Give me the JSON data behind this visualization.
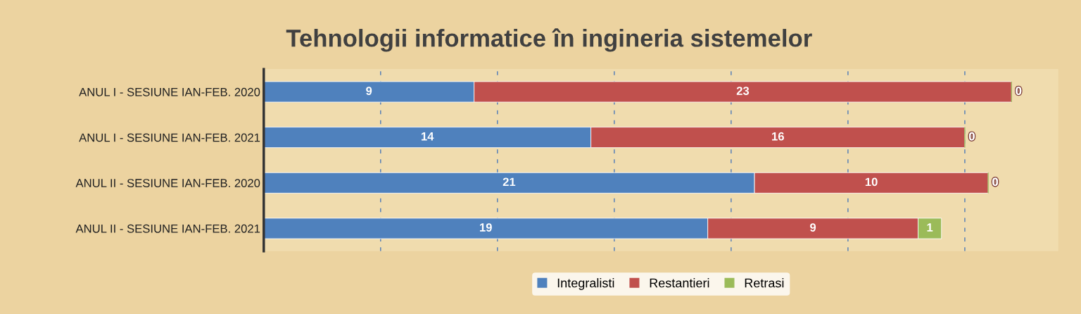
{
  "chart_data": {
    "type": "bar",
    "orientation": "horizontal",
    "stacked": true,
    "title": "Tehnologii informatice în ingineria sistemelor",
    "categories": [
      "ANUL I - SESIUNE IAN-FEB. 2020",
      "ANUL I - SESIUNE IAN-FEB. 2021",
      "ANUL II - SESIUNE IAN-FEB. 2020",
      "ANUL II - SESIUNE IAN-FEB. 2021"
    ],
    "series": [
      {
        "name": "Integralisti",
        "color": "#4f81bd",
        "values": [
          9,
          14,
          21,
          19
        ]
      },
      {
        "name": "Restantieri",
        "color": "#c0504d",
        "values": [
          23,
          16,
          10,
          9
        ]
      },
      {
        "name": "Retrasi",
        "color": "#9bbb59",
        "values": [
          0,
          0,
          0,
          1
        ]
      }
    ],
    "xlim": [
      0,
      34
    ],
    "xticks": [
      {
        "value": 5,
        "label": null
      },
      {
        "value": 10,
        "label": null
      },
      {
        "value": 15,
        "label": null
      },
      {
        "value": 20,
        "label": null
      },
      {
        "value": 25,
        "label": null
      },
      {
        "value": 30,
        "label": null
      }
    ],
    "tick_labels": "y",
    "grid": "x",
    "data_labels": true,
    "legend": "bottom"
  }
}
